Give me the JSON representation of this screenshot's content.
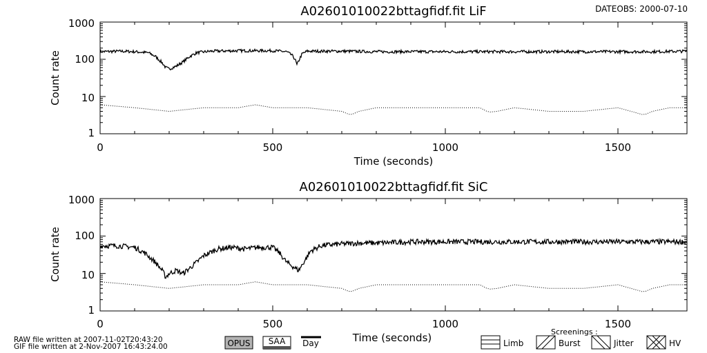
{
  "header": {
    "dateobs": "DATEOBS: 2000-07-10"
  },
  "chart_data": [
    {
      "type": "line",
      "title": "A02601010022bttagfidf.fit LiF",
      "xlabel": "Time (seconds)",
      "ylabel": "Count rate",
      "xlim": [
        0,
        1700
      ],
      "ylim": [
        1,
        1000
      ],
      "yscale": "log",
      "xticks": [
        "0",
        "500",
        "1000",
        "1500"
      ],
      "yticks": [
        "1",
        "10",
        "100",
        "1000"
      ],
      "series": [
        {
          "style": "solid",
          "x": [
            0,
            60,
            100,
            140,
            160,
            180,
            190,
            200,
            220,
            240,
            260,
            280,
            320,
            400,
            500,
            540,
            555,
            565,
            570,
            575,
            585,
            600,
            700,
            800,
            1000,
            1200,
            1400,
            1600,
            1700
          ],
          "values": [
            160,
            165,
            160,
            150,
            120,
            80,
            60,
            55,
            65,
            85,
            120,
            150,
            165,
            170,
            170,
            160,
            130,
            100,
            70,
            90,
            140,
            165,
            165,
            160,
            160,
            160,
            160,
            160,
            165
          ]
        },
        {
          "style": "dotted",
          "x": [
            0,
            100,
            200,
            300,
            400,
            450,
            500,
            600,
            700,
            725,
            750,
            800,
            900,
            1000,
            1100,
            1125,
            1150,
            1200,
            1300,
            1400,
            1500,
            1575,
            1600,
            1650,
            1700
          ],
          "values": [
            6,
            5,
            4,
            5,
            5,
            6,
            5,
            5,
            4,
            3.2,
            4,
            5,
            5,
            5,
            5,
            3.8,
            4,
            5,
            4,
            4,
            5,
            3.2,
            4,
            5,
            5
          ]
        }
      ]
    },
    {
      "type": "line",
      "title": "A02601010022bttagfidf.fit SiC",
      "xlabel": "Time (seconds)",
      "ylabel": "Count rate",
      "xlim": [
        0,
        1700
      ],
      "ylim": [
        1,
        1000
      ],
      "yscale": "log",
      "xticks": [
        "0",
        "500",
        "1000",
        "1500"
      ],
      "yticks": [
        "1",
        "10",
        "100",
        "1000"
      ],
      "series": [
        {
          "style": "solid",
          "x": [
            0,
            50,
            100,
            130,
            160,
            180,
            190,
            200,
            220,
            240,
            260,
            280,
            300,
            340,
            380,
            420,
            460,
            500,
            520,
            540,
            560,
            575,
            590,
            610,
            640,
            680,
            750,
            800,
            900,
            1000,
            1200,
            1400,
            1600,
            1700
          ],
          "values": [
            55,
            55,
            50,
            35,
            20,
            12,
            8,
            10,
            12,
            10,
            14,
            20,
            30,
            45,
            50,
            45,
            50,
            50,
            35,
            20,
            15,
            12,
            20,
            40,
            55,
            60,
            65,
            65,
            70,
            70,
            70,
            70,
            70,
            70
          ]
        },
        {
          "style": "dotted",
          "x": [
            0,
            100,
            200,
            300,
            400,
            450,
            500,
            600,
            700,
            725,
            750,
            800,
            900,
            1000,
            1100,
            1125,
            1150,
            1200,
            1300,
            1400,
            1500,
            1575,
            1600,
            1650,
            1700
          ],
          "values": [
            6,
            5,
            4,
            5,
            5,
            6,
            5,
            5,
            4,
            3.2,
            4,
            5,
            5,
            5,
            5,
            3.8,
            4,
            5,
            4,
            4,
            5,
            3.2,
            4,
            5,
            5
          ]
        }
      ]
    }
  ],
  "footer": {
    "raw_written": "RAW file written at 2007-11-02T20:43:20",
    "gif_written": "GIF file written at  2-Nov-2007 16:43:24.00",
    "legend": {
      "opus": "OPUS",
      "saa": "SAA",
      "day": "Day"
    },
    "screenings": {
      "title": "Screenings :",
      "items": [
        "Limb",
        "Burst",
        "Jitter",
        "HV"
      ]
    }
  }
}
